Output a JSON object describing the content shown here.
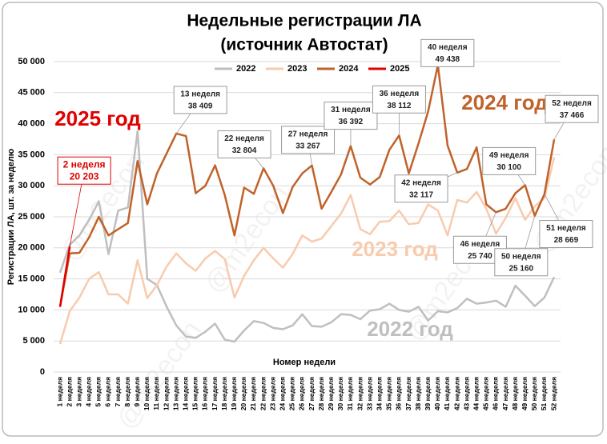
{
  "chart_data": {
    "type": "line",
    "title": "Недельные регистрации ЛА",
    "subtitle": "(источник Автостат)",
    "x_label": "Номер недели",
    "y_label": "Регистрации ЛА, шт. за неделю",
    "watermark": "@m2econ",
    "grid": true,
    "legend_position": "top",
    "ylim": [
      0,
      50000
    ],
    "yticks": [
      {
        "value": 0,
        "label": "0"
      },
      {
        "value": 5000,
        "label": "5 000"
      },
      {
        "value": 10000,
        "label": "10 000"
      },
      {
        "value": 15000,
        "label": "15 000"
      },
      {
        "value": 20000,
        "label": "20 000"
      },
      {
        "value": 25000,
        "label": "25 000"
      },
      {
        "value": 30000,
        "label": "30 000"
      },
      {
        "value": 35000,
        "label": "35 000"
      },
      {
        "value": 40000,
        "label": "40 000"
      },
      {
        "value": 45000,
        "label": "45 000"
      },
      {
        "value": 50000,
        "label": "50 000"
      }
    ],
    "categories": [
      "1 неделя",
      "2 неделя",
      "3 неделя",
      "4 неделя",
      "5 неделя",
      "6 неделя",
      "7 неделя",
      "8 неделя",
      "9 неделя",
      "10 неделя",
      "11 неделя",
      "12 неделя",
      "13 неделя",
      "14 неделя",
      "15 неделя",
      "16 неделя",
      "17 неделя",
      "18 неделя",
      "19 неделя",
      "20 неделя",
      "21 неделя",
      "22 неделя",
      "23 неделя",
      "24 неделя",
      "25 неделя",
      "26 неделя",
      "27 неделя",
      "28 неделя",
      "29 неделя",
      "30 неделя",
      "31 неделя",
      "32 неделя",
      "33 неделя",
      "34 неделя",
      "35 неделя",
      "36 неделя",
      "37 неделя",
      "38 неделя",
      "39 неделя",
      "40 неделя",
      "41 неделя",
      "42 неделя",
      "43 неделя",
      "44 неделя",
      "45 неделя",
      "46 неделя",
      "47 неделя",
      "48 неделя",
      "49 неделя",
      "50 неделя",
      "51 неделя",
      "52 неделя"
    ],
    "series": [
      {
        "name": "2022",
        "color": "#bfbfbf",
        "values": [
          16000,
          20500,
          22000,
          24500,
          27500,
          19000,
          26000,
          26500,
          38800,
          15000,
          14000,
          10500,
          7500,
          5700,
          5500,
          6500,
          7800,
          5200,
          4900,
          6700,
          8200,
          7900,
          7100,
          6900,
          7500,
          9300,
          7400,
          7300,
          8000,
          9300,
          9200,
          8500,
          9900,
          10100,
          11000,
          10000,
          9700,
          10500,
          8300,
          9800,
          9600,
          10300,
          11800,
          11000,
          11200,
          11500,
          10500,
          13900,
          12300,
          10600,
          12000,
          15300
        ]
      },
      {
        "name": "2023",
        "color": "#f8cbad",
        "values": [
          4500,
          9800,
          12000,
          15000,
          16100,
          12500,
          12500,
          11000,
          18000,
          11900,
          14000,
          17000,
          19100,
          17500,
          16300,
          18300,
          19500,
          18200,
          12000,
          15500,
          18000,
          20000,
          18300,
          16800,
          19000,
          22000,
          21000,
          21500,
          23500,
          25500,
          28500,
          23000,
          22200,
          24200,
          24300,
          26000,
          23800,
          24000,
          27000,
          26000,
          22000,
          27700,
          27300,
          29000,
          26300,
          22300,
          24800,
          28000,
          24500,
          26700,
          28000,
          34600
        ]
      },
      {
        "name": "2024",
        "color": "#c0622a",
        "values": [
          10500,
          19100,
          19200,
          21700,
          25000,
          22000,
          23000,
          24000,
          34000,
          27000,
          32000,
          35200,
          38409,
          38000,
          28800,
          30000,
          33300,
          28500,
          22000,
          29700,
          28700,
          32804,
          30000,
          25600,
          29800,
          32000,
          33267,
          26300,
          29000,
          31800,
          36392,
          31300,
          30200,
          31400,
          35800,
          38112,
          32000,
          36800,
          42000,
          49438,
          36500,
          32117,
          32700,
          36200,
          27000,
          25740,
          26300,
          28800,
          30100,
          25160,
          28669,
          37466
        ],
        "value_labels": [
          null,
          null,
          null,
          null,
          null,
          null,
          null,
          null,
          null,
          null,
          null,
          null,
          "38 409",
          null,
          null,
          null,
          null,
          null,
          null,
          null,
          null,
          "32 804",
          null,
          null,
          null,
          null,
          "33 267",
          null,
          null,
          null,
          "36 392",
          null,
          null,
          null,
          null,
          "38 112",
          null,
          null,
          null,
          "49 438",
          null,
          "32 117",
          null,
          null,
          null,
          "25 740",
          null,
          null,
          "30 100",
          "25 160",
          "28 669",
          "37 466"
        ]
      },
      {
        "name": "2025",
        "color": "#e00000",
        "values": [
          10500,
          20203,
          null,
          null,
          null,
          null,
          null,
          null,
          null,
          null,
          null,
          null,
          null,
          null,
          null,
          null,
          null,
          null,
          null,
          null,
          null,
          null,
          null,
          null,
          null,
          null,
          null,
          null,
          null,
          null,
          null,
          null,
          null,
          null,
          null,
          null,
          null,
          null,
          null,
          null,
          null,
          null,
          null,
          null,
          null,
          null,
          null,
          null,
          null,
          null,
          null,
          null
        ],
        "value_labels": [
          null,
          "20 203",
          null,
          null,
          null,
          null,
          null,
          null,
          null,
          null,
          null,
          null,
          null,
          null,
          null,
          null,
          null,
          null,
          null,
          null,
          null,
          null,
          null,
          null,
          null,
          null,
          null,
          null,
          null,
          null,
          null,
          null,
          null,
          null,
          null,
          null,
          null,
          null,
          null,
          null,
          null,
          null,
          null,
          null,
          null,
          null,
          null,
          null,
          null,
          null,
          null,
          null
        ]
      }
    ],
    "annotations": [
      {
        "text": "2025 год",
        "color": "#e00000"
      },
      {
        "text": "2024 год",
        "color": "#c0622a"
      },
      {
        "text": "2023 год",
        "color": "#f8cbad"
      },
      {
        "text": "2022 год",
        "color": "#bfbfbf"
      }
    ]
  }
}
